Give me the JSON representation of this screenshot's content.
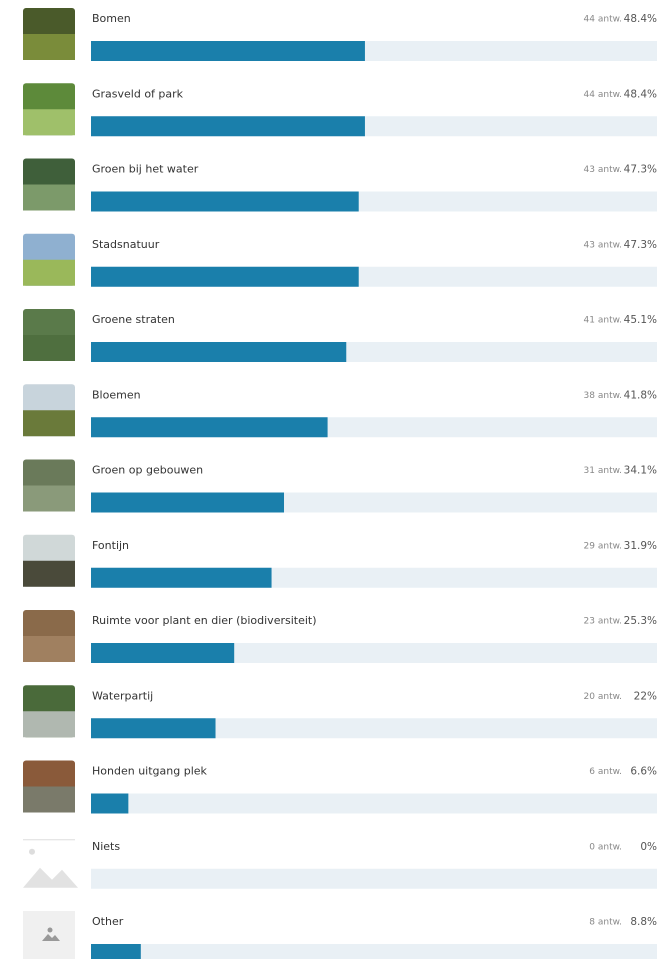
{
  "chart_data": {
    "type": "bar",
    "orientation": "horizontal",
    "color": "#1a7fab",
    "categories": [
      "Bomen",
      "Grasveld of park",
      "Groen bij het water",
      "Stadsnatuur",
      "Groene straten",
      "Bloemen",
      "Groen op gebouwen",
      "Fontijn",
      "Ruimte voor plant en dier (biodiversiteit)",
      "Waterpartij",
      "Honden uitgang plek",
      "Niets",
      "Other"
    ],
    "values": [
      48.4,
      48.4,
      47.3,
      47.3,
      45.1,
      41.8,
      34.1,
      31.9,
      25.3,
      22,
      6.6,
      0,
      8.8
    ],
    "value_labels": [
      "48.4%",
      "48.4%",
      "47.3%",
      "47.3%",
      "45.1%",
      "41.8%",
      "34.1%",
      "31.9%",
      "25.3%",
      "22%",
      "6.6%",
      "0%",
      "8.8%"
    ],
    "count_labels": [
      "44 antw.",
      "44 antw.",
      "43 antw.",
      "43 antw.",
      "41 antw.",
      "38 antw.",
      "31 antw.",
      "29 antw.",
      "23 antw.",
      "20 antw.",
      "6 antw.",
      "0 antw.",
      "8 antw."
    ],
    "xlim": [
      0,
      100
    ]
  }
}
